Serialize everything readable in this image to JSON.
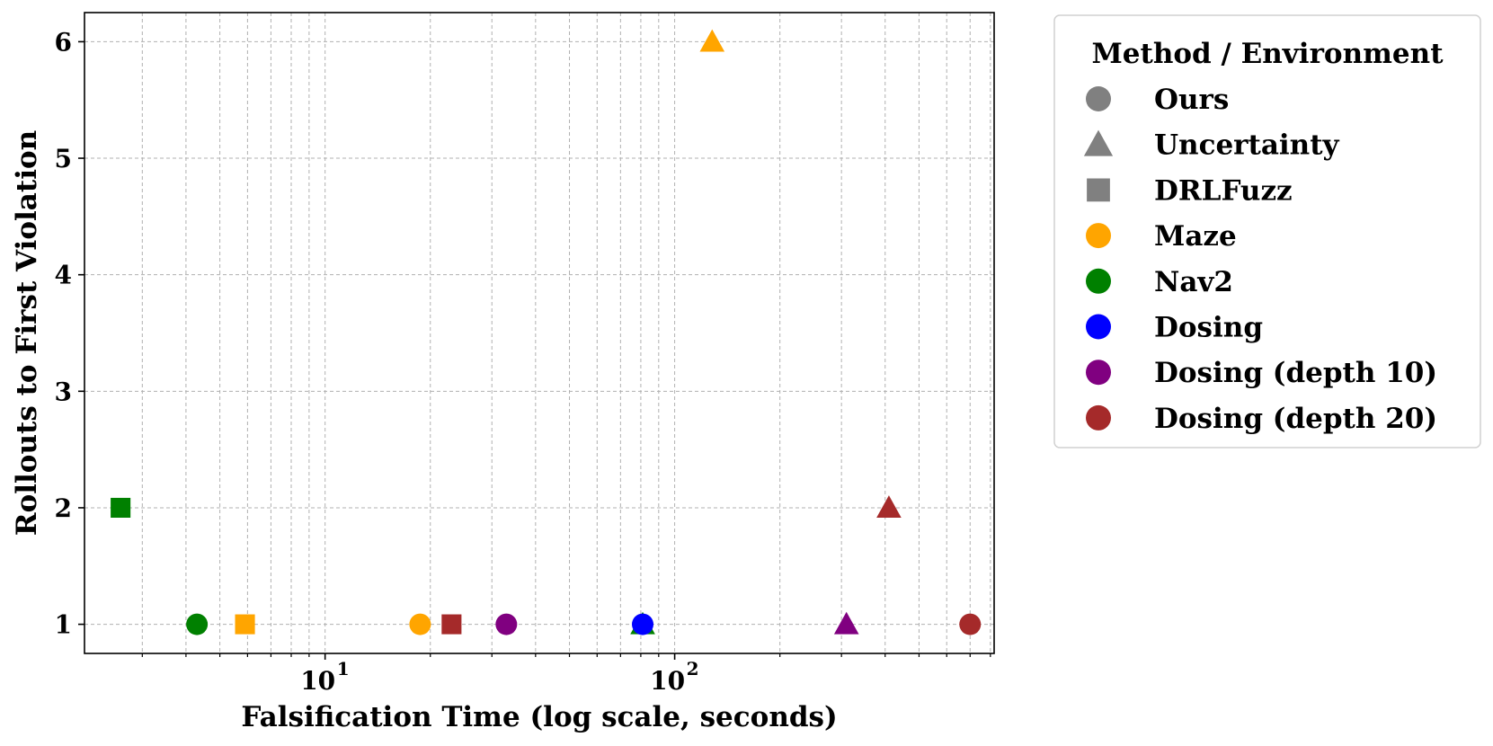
{
  "chart_data": {
    "type": "scatter",
    "title": "",
    "xlabel": "Falsification Time (log scale, seconds)",
    "ylabel": "Rollouts to First Violation",
    "xscale": "log",
    "xlim": [
      2.05,
      820
    ],
    "ylim": [
      0.75,
      6.25
    ],
    "xticks": [
      10,
      100
    ],
    "xtick_labels": [
      {
        "base": "10",
        "exp": "1"
      },
      {
        "base": "10",
        "exp": "2"
      }
    ],
    "yticks": [
      1,
      2,
      3,
      4,
      5,
      6
    ],
    "ytick_labels": [
      "1",
      "2",
      "3",
      "4",
      "5",
      "6"
    ],
    "grid": true,
    "legend": {
      "title": "Method / Environment",
      "placement": "outside-right-top",
      "entries": [
        {
          "label": "Ours",
          "marker": "circle",
          "color": "#808080"
        },
        {
          "label": "Uncertainty",
          "marker": "triangle",
          "color": "#808080"
        },
        {
          "label": "DRLFuzz",
          "marker": "square",
          "color": "#808080"
        },
        {
          "label": "Maze",
          "marker": "circle",
          "color": "#ffa500"
        },
        {
          "label": "Nav2",
          "marker": "circle",
          "color": "#008000"
        },
        {
          "label": "Dosing",
          "marker": "circle",
          "color": "#0000ff"
        },
        {
          "label": "Dosing (depth 10)",
          "marker": "circle",
          "color": "#800080"
        },
        {
          "label": "Dosing (depth 20)",
          "marker": "circle",
          "color": "#a52a2a"
        }
      ]
    },
    "points": [
      {
        "method": "DRLFuzz",
        "env": "Nav2",
        "marker": "square",
        "color": "#008000",
        "x": 2.6,
        "y": 2
      },
      {
        "method": "Ours",
        "env": "Nav2",
        "marker": "circle",
        "color": "#008000",
        "x": 4.3,
        "y": 1
      },
      {
        "method": "DRLFuzz",
        "env": "Maze",
        "marker": "square",
        "color": "#ffa500",
        "x": 5.9,
        "y": 1
      },
      {
        "method": "Ours",
        "env": "Maze",
        "marker": "circle",
        "color": "#ffa500",
        "x": 18.7,
        "y": 1
      },
      {
        "method": "DRLFuzz",
        "env": "Dosing (depth 20)",
        "marker": "square",
        "color": "#a52a2a",
        "x": 23.0,
        "y": 1
      },
      {
        "method": "Ours",
        "env": "Dosing (depth 10)",
        "marker": "circle",
        "color": "#800080",
        "x": 33.0,
        "y": 1
      },
      {
        "method": "Uncertainty",
        "env": "Nav2",
        "marker": "triangle",
        "color": "#008000",
        "x": 81.0,
        "y": 1
      },
      {
        "method": "Ours",
        "env": "Dosing",
        "marker": "circle",
        "color": "#0000ff",
        "x": 81.0,
        "y": 1
      },
      {
        "method": "Uncertainty",
        "env": "Maze",
        "marker": "triangle",
        "color": "#ffa500",
        "x": 128.0,
        "y": 6
      },
      {
        "method": "Uncertainty",
        "env": "Dosing (depth 10)",
        "marker": "triangle",
        "color": "#800080",
        "x": 310.0,
        "y": 1
      },
      {
        "method": "Uncertainty",
        "env": "Dosing (depth 20)",
        "marker": "triangle",
        "color": "#a52a2a",
        "x": 410.0,
        "y": 2
      },
      {
        "method": "Ours",
        "env": "Dosing (depth 20)",
        "marker": "circle",
        "color": "#a52a2a",
        "x": 700.0,
        "y": 1
      }
    ]
  }
}
